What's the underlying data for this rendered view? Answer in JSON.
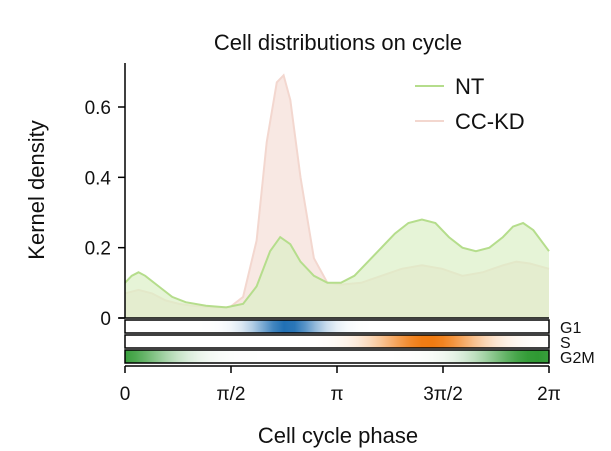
{
  "chart_data": {
    "type": "area",
    "title": "Cell distributions on cycle",
    "xlabel": "Cell cycle phase",
    "ylabel": "Kernel density",
    "xlim": [
      0,
      6.2832
    ],
    "ylim": [
      -0.13,
      0.72
    ],
    "x_ticks": [
      {
        "value": 0,
        "label": "0"
      },
      {
        "value": 1.5708,
        "label": "π/2"
      },
      {
        "value": 3.1416,
        "label": "π"
      },
      {
        "value": 4.7124,
        "label": "3π/2"
      },
      {
        "value": 6.2832,
        "label": "2π"
      }
    ],
    "y_ticks": [
      {
        "value": 0,
        "label": "0"
      },
      {
        "value": 0.2,
        "label": "0.2"
      },
      {
        "value": 0.4,
        "label": "0.4"
      },
      {
        "value": 0.6,
        "label": "0.6"
      }
    ],
    "legend_position": "top-right",
    "series": [
      {
        "name": "NT",
        "color": "#b5dd8c",
        "fill": "#dcefc6",
        "points": [
          [
            0.0,
            0.1
          ],
          [
            0.1,
            0.12
          ],
          [
            0.2,
            0.13
          ],
          [
            0.3,
            0.12
          ],
          [
            0.5,
            0.09
          ],
          [
            0.7,
            0.06
          ],
          [
            0.9,
            0.045
          ],
          [
            1.2,
            0.035
          ],
          [
            1.5,
            0.03
          ],
          [
            1.75,
            0.04
          ],
          [
            1.95,
            0.09
          ],
          [
            2.15,
            0.19
          ],
          [
            2.3,
            0.23
          ],
          [
            2.45,
            0.21
          ],
          [
            2.6,
            0.16
          ],
          [
            2.8,
            0.12
          ],
          [
            3.0,
            0.1
          ],
          [
            3.2,
            0.1
          ],
          [
            3.4,
            0.12
          ],
          [
            3.7,
            0.18
          ],
          [
            4.0,
            0.24
          ],
          [
            4.2,
            0.27
          ],
          [
            4.4,
            0.28
          ],
          [
            4.6,
            0.27
          ],
          [
            4.8,
            0.23
          ],
          [
            5.0,
            0.2
          ],
          [
            5.2,
            0.19
          ],
          [
            5.4,
            0.2
          ],
          [
            5.6,
            0.23
          ],
          [
            5.75,
            0.26
          ],
          [
            5.9,
            0.27
          ],
          [
            6.05,
            0.25
          ],
          [
            6.2832,
            0.19
          ]
        ]
      },
      {
        "name": "CC-KD",
        "color": "#f3d7cf",
        "fill": "#f7e6e0",
        "points": [
          [
            0.0,
            0.07
          ],
          [
            0.2,
            0.08
          ],
          [
            0.4,
            0.07
          ],
          [
            0.6,
            0.05
          ],
          [
            0.8,
            0.04
          ],
          [
            1.0,
            0.035
          ],
          [
            1.3,
            0.03
          ],
          [
            1.55,
            0.03
          ],
          [
            1.75,
            0.06
          ],
          [
            1.95,
            0.22
          ],
          [
            2.1,
            0.5
          ],
          [
            2.25,
            0.67
          ],
          [
            2.35,
            0.69
          ],
          [
            2.45,
            0.62
          ],
          [
            2.6,
            0.4
          ],
          [
            2.8,
            0.17
          ],
          [
            3.0,
            0.1
          ],
          [
            3.2,
            0.095
          ],
          [
            3.5,
            0.1
          ],
          [
            3.8,
            0.12
          ],
          [
            4.1,
            0.14
          ],
          [
            4.4,
            0.15
          ],
          [
            4.7,
            0.14
          ],
          [
            5.0,
            0.12
          ],
          [
            5.3,
            0.13
          ],
          [
            5.6,
            0.15
          ],
          [
            5.8,
            0.16
          ],
          [
            6.0,
            0.155
          ],
          [
            6.2832,
            0.14
          ]
        ]
      }
    ],
    "phase_bars": [
      {
        "label": "G1",
        "color": "#1f6fb4",
        "peak_x": 2.4,
        "width": 0.35
      },
      {
        "label": "S",
        "color": "#f07a10",
        "peak_x": 4.5,
        "width": 0.55
      },
      {
        "label": "G2M",
        "color": "#2f9a33",
        "peak_x": 6.1,
        "width": 0.6
      }
    ]
  }
}
